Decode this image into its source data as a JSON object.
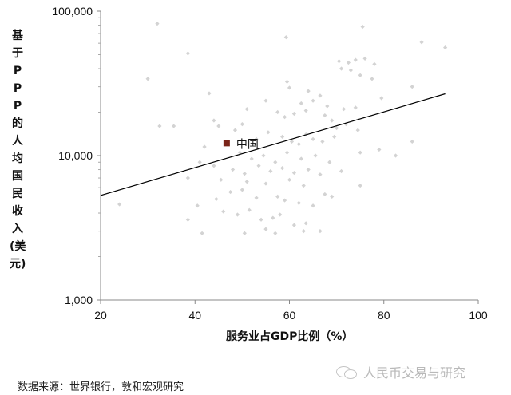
{
  "chart_data": {
    "type": "scatter",
    "title": "",
    "xlabel": "服务业占GDP比例（%）",
    "ylabel": "基于PPP的人均国民收入(美元)",
    "xlim": [
      20,
      100
    ],
    "ylim": [
      1000,
      100000
    ],
    "yscale": "log",
    "xticks": [
      "20",
      "40",
      "60",
      "80",
      "100"
    ],
    "yticks": [
      "1,000",
      "10,000",
      "100,000"
    ],
    "grid": false,
    "point_color": "#d3d3d3",
    "trend_color": "#000000",
    "highlight_color": "#7a2418",
    "trendline": {
      "x": [
        20,
        93
      ],
      "y": [
        5300,
        26800
      ]
    },
    "highlight": {
      "label": "中国",
      "x": 46.7,
      "y": 12200
    },
    "points": [
      [
        32.0,
        82000
      ],
      [
        59.3,
        66000
      ],
      [
        88.0,
        61000
      ],
      [
        93.0,
        56000
      ],
      [
        75.5,
        78000
      ],
      [
        38.5,
        51000
      ],
      [
        70.5,
        45000
      ],
      [
        72.5,
        44000
      ],
      [
        74.0,
        46000
      ],
      [
        76.0,
        47000
      ],
      [
        78.0,
        43000
      ],
      [
        71.0,
        40000
      ],
      [
        73.0,
        39000
      ],
      [
        75.0,
        36000
      ],
      [
        77.5,
        34000
      ],
      [
        30.0,
        34000
      ],
      [
        59.5,
        32500
      ],
      [
        60.0,
        29500
      ],
      [
        86.0,
        30000
      ],
      [
        64.0,
        28000
      ],
      [
        43.0,
        27000
      ],
      [
        55.0,
        24000
      ],
      [
        62.5,
        23000
      ],
      [
        65.0,
        24000
      ],
      [
        66.5,
        26000
      ],
      [
        68.0,
        22000
      ],
      [
        71.5,
        21000
      ],
      [
        74.0,
        21500
      ],
      [
        79.5,
        25000
      ],
      [
        51.0,
        21000
      ],
      [
        57.5,
        20000
      ],
      [
        59.0,
        18500
      ],
      [
        61.0,
        19500
      ],
      [
        63.5,
        20500
      ],
      [
        67.5,
        19000
      ],
      [
        69.0,
        17500
      ],
      [
        72.0,
        16500
      ],
      [
        70.0,
        15500
      ],
      [
        74.5,
        15000
      ],
      [
        32.5,
        16000
      ],
      [
        35.5,
        16000
      ],
      [
        44.0,
        17500
      ],
      [
        45.0,
        16000
      ],
      [
        48.5,
        15000
      ],
      [
        50.0,
        16500
      ],
      [
        53.0,
        13000
      ],
      [
        55.5,
        14500
      ],
      [
        58.5,
        13500
      ],
      [
        60.5,
        12500
      ],
      [
        62.0,
        12000
      ],
      [
        63.5,
        14000
      ],
      [
        65.0,
        13000
      ],
      [
        67.0,
        12500
      ],
      [
        69.5,
        13500
      ],
      [
        42.0,
        11500
      ],
      [
        49.5,
        10500
      ],
      [
        52.0,
        9500
      ],
      [
        54.5,
        10000
      ],
      [
        57.0,
        9000
      ],
      [
        59.5,
        10500
      ],
      [
        62.5,
        9500
      ],
      [
        65.5,
        10000
      ],
      [
        68.5,
        9000
      ],
      [
        75.0,
        10500
      ],
      [
        79.0,
        11000
      ],
      [
        82.5,
        10000
      ],
      [
        86.0,
        12500
      ],
      [
        41.0,
        9000
      ],
      [
        44.0,
        8500
      ],
      [
        48.0,
        8000
      ],
      [
        50.5,
        7500
      ],
      [
        53.5,
        8500
      ],
      [
        56.0,
        7800
      ],
      [
        58.5,
        8200
      ],
      [
        61.0,
        7600
      ],
      [
        64.0,
        8000
      ],
      [
        66.5,
        7400
      ],
      [
        71.0,
        7800
      ],
      [
        38.5,
        7000
      ],
      [
        45.5,
        6800
      ],
      [
        51.0,
        6600
      ],
      [
        55.0,
        6400
      ],
      [
        60.0,
        6800
      ],
      [
        63.0,
        6200
      ],
      [
        67.5,
        5400
      ],
      [
        69.0,
        5200
      ],
      [
        75.0,
        6200
      ],
      [
        47.5,
        5600
      ],
      [
        50.0,
        5800
      ],
      [
        53.0,
        5100
      ],
      [
        57.5,
        5200
      ],
      [
        59.0,
        4900
      ],
      [
        62.0,
        4700
      ],
      [
        65.0,
        4500
      ],
      [
        44.5,
        5000
      ],
      [
        40.5,
        4500
      ],
      [
        24.0,
        4600
      ],
      [
        46.0,
        4100
      ],
      [
        49.0,
        3900
      ],
      [
        51.5,
        4200
      ],
      [
        54.0,
        3600
      ],
      [
        56.5,
        3700
      ],
      [
        58.0,
        3900
      ],
      [
        61.0,
        3300
      ],
      [
        63.5,
        3400
      ],
      [
        38.5,
        3600
      ],
      [
        50.5,
        2900
      ],
      [
        55.0,
        3100
      ],
      [
        57.0,
        2900
      ],
      [
        63.0,
        3000
      ],
      [
        66.5,
        3000
      ],
      [
        41.5,
        2900
      ]
    ]
  },
  "footer": {
    "source": "数据来源：世界银行，敦和宏观研究",
    "watermark": "人民币交易与研究"
  }
}
